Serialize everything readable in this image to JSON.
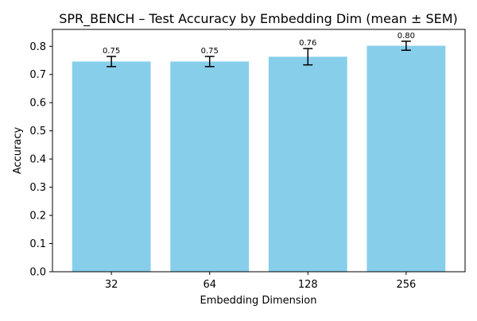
{
  "chart_data": {
    "type": "bar",
    "title": "SPR_BENCH – Test Accuracy by Embedding Dim (mean ± SEM)",
    "xlabel": "Embedding Dimension",
    "ylabel": "Accuracy",
    "categories": [
      "32",
      "64",
      "128",
      "256"
    ],
    "values": [
      0.746,
      0.746,
      0.763,
      0.802
    ],
    "errors": [
      0.018,
      0.018,
      0.029,
      0.016
    ],
    "data_labels": [
      "0.75",
      "0.75",
      "0.76",
      "0.80"
    ],
    "ylim": [
      0,
      0.86
    ],
    "yticks": [
      0.0,
      0.1,
      0.2,
      0.3,
      0.4,
      0.5,
      0.6,
      0.7,
      0.8
    ],
    "ytick_labels": [
      "0.0",
      "0.1",
      "0.2",
      "0.3",
      "0.4",
      "0.5",
      "0.6",
      "0.7",
      "0.8"
    ],
    "bar_color": "#87ceeb",
    "error_color": "#000000",
    "grid": false,
    "legend": "none"
  }
}
